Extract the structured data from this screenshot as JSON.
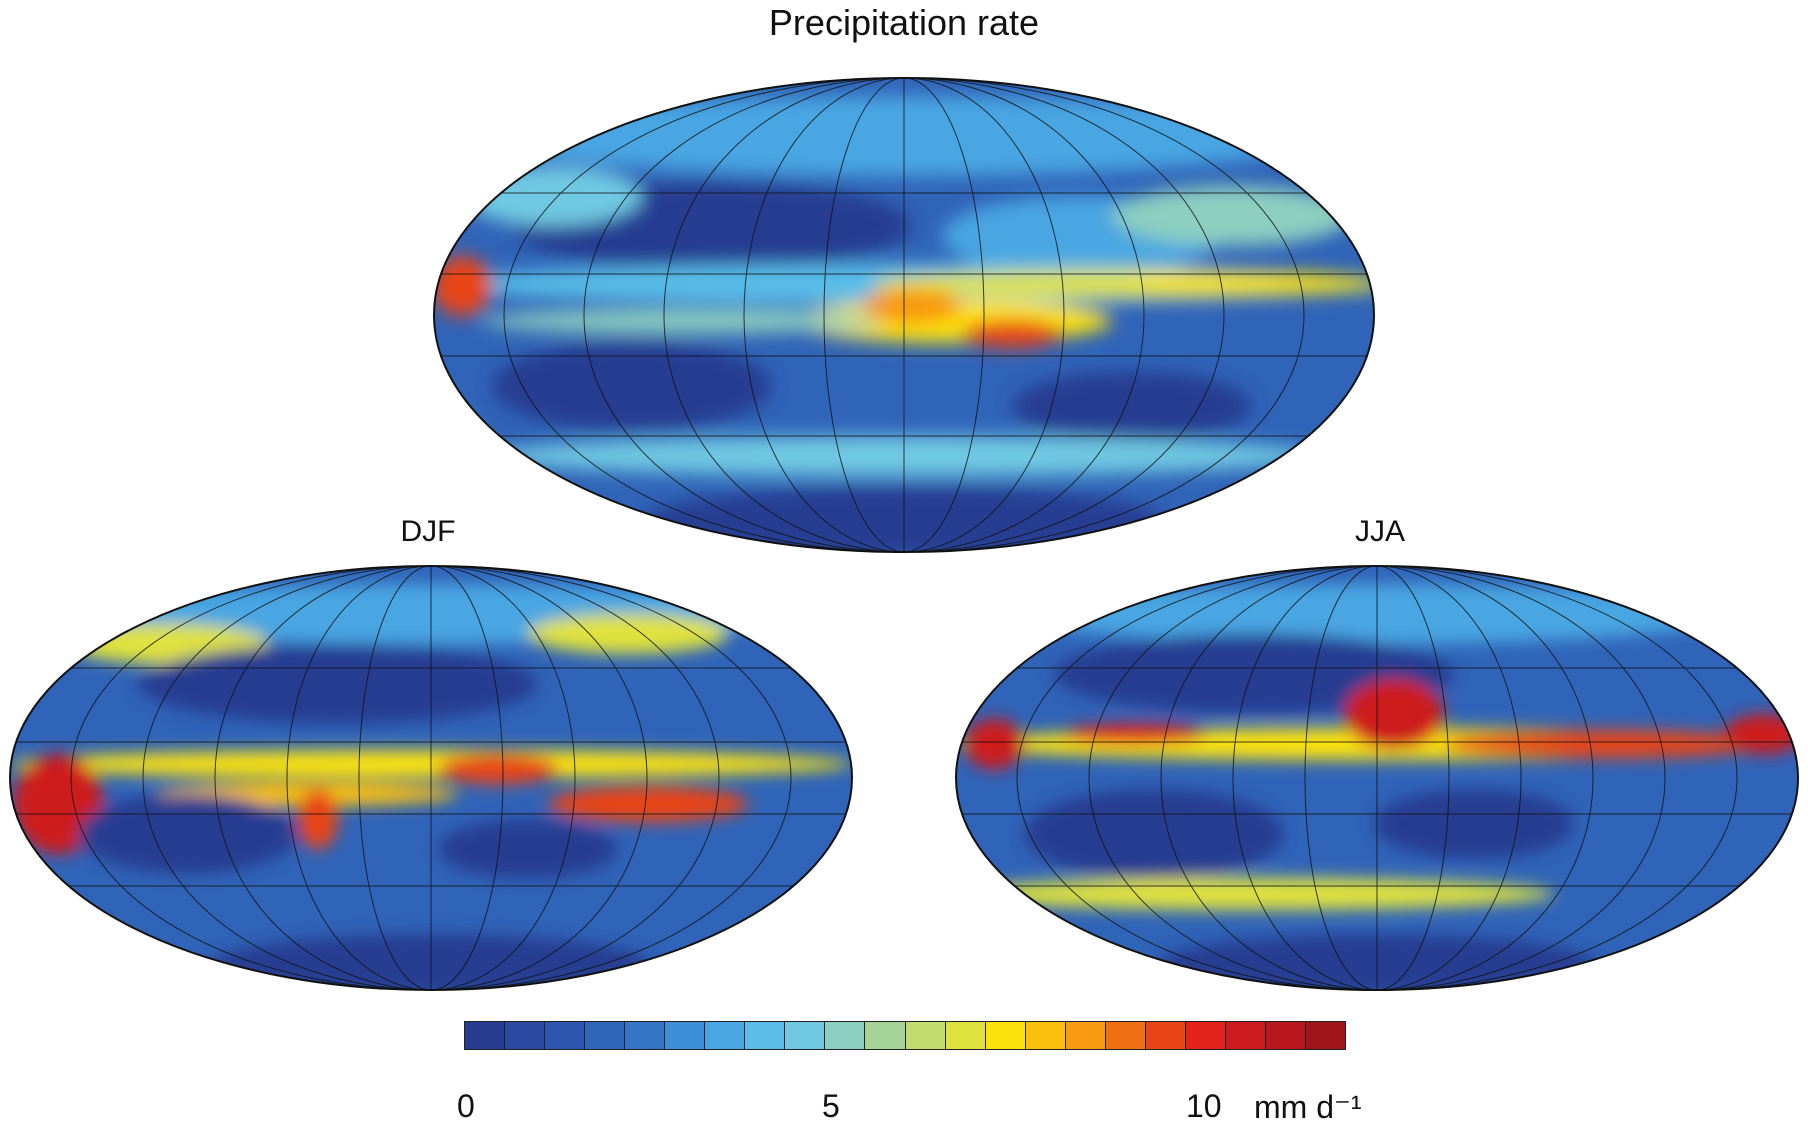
{
  "title": "Precipitation rate",
  "panels": [
    {
      "id": "annual",
      "label": ""
    },
    {
      "id": "djf",
      "label": "DJF"
    },
    {
      "id": "jja",
      "label": "JJA"
    }
  ],
  "colorbar": {
    "colors": [
      "#283c92",
      "#2a4aa0",
      "#2d57ae",
      "#3064b8",
      "#3475c6",
      "#3d8fd8",
      "#4aa6e2",
      "#59bde8",
      "#6fc9e2",
      "#8ccfc0",
      "#a6d398",
      "#c2da6e",
      "#dfe23c",
      "#fbe20c",
      "#fbc00b",
      "#f89a10",
      "#ef7012",
      "#e84418",
      "#e1231c",
      "#cd1a1e",
      "#b8171d",
      "#a1141c"
    ],
    "tick_labels": [
      "0",
      "5",
      "10"
    ],
    "units": "mm d⁻¹"
  },
  "colors": {
    "ocean_low": "#283c92",
    "mid": "#59bde8",
    "high": "#fbe20c",
    "extreme": "#cd1a1e"
  }
}
